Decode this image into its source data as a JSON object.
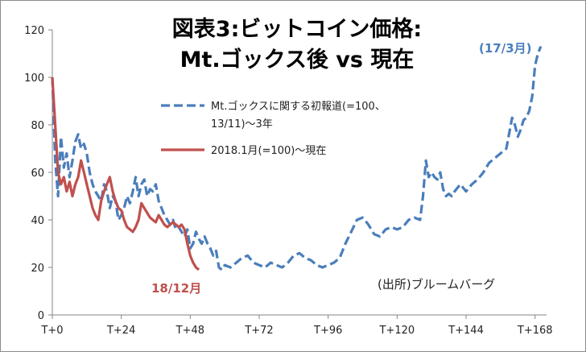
{
  "chart_data": {
    "type": "line",
    "title_line1": "図表3:ビットコイン価格:",
    "title_line2": "Mt.ゴックス後 vs 現在",
    "source": "(出所)ブルームバーグ",
    "xlim": [
      0,
      172
    ],
    "ylim": [
      0,
      120
    ],
    "y_ticks": [
      0,
      20,
      40,
      60,
      80,
      100,
      120
    ],
    "x_ticks": [
      {
        "value": 0,
        "label": "T+0"
      },
      {
        "value": 24,
        "label": "T+24"
      },
      {
        "value": 48,
        "label": "T+48"
      },
      {
        "value": 72,
        "label": "T+72"
      },
      {
        "value": 96,
        "label": "T+96"
      },
      {
        "value": 120,
        "label": "T+120"
      },
      {
        "value": 144,
        "label": "T+144"
      },
      {
        "value": 168,
        "label": "T+168"
      }
    ],
    "legend_position": "top-right",
    "series": [
      {
        "name_line1": "Mt.ゴックスに関する初報道(=100、",
        "name_line2": "13/11)〜3年",
        "color": "#4a7ebb",
        "style": "dashed",
        "end_label": "(17/3月)",
        "points": [
          [
            0,
            100
          ],
          [
            1,
            65
          ],
          [
            2,
            50
          ],
          [
            3,
            75
          ],
          [
            4,
            62
          ],
          [
            5,
            68
          ],
          [
            6,
            58
          ],
          [
            7,
            65
          ],
          [
            8,
            73
          ],
          [
            9,
            76
          ],
          [
            10,
            70
          ],
          [
            11,
            72
          ],
          [
            12,
            68
          ],
          [
            13,
            60
          ],
          [
            14,
            55
          ],
          [
            15,
            52
          ],
          [
            16,
            50
          ],
          [
            17,
            48
          ],
          [
            18,
            55
          ],
          [
            19,
            52
          ],
          [
            20,
            45
          ],
          [
            21,
            50
          ],
          [
            22,
            48
          ],
          [
            23,
            40
          ],
          [
            24,
            42
          ],
          [
            25,
            45
          ],
          [
            26,
            50
          ],
          [
            27,
            47
          ],
          [
            28,
            52
          ],
          [
            29,
            58
          ],
          [
            30,
            50
          ],
          [
            31,
            55
          ],
          [
            32,
            57
          ],
          [
            33,
            50
          ],
          [
            34,
            53
          ],
          [
            35,
            52
          ],
          [
            36,
            55
          ],
          [
            37,
            48
          ],
          [
            38,
            45
          ],
          [
            39,
            42
          ],
          [
            40,
            40
          ],
          [
            41,
            38
          ],
          [
            42,
            40
          ],
          [
            43,
            36
          ],
          [
            44,
            37
          ],
          [
            45,
            35
          ],
          [
            46,
            33
          ],
          [
            47,
            36
          ],
          [
            48,
            28
          ],
          [
            49,
            30
          ],
          [
            50,
            35
          ],
          [
            51,
            32
          ],
          [
            52,
            30
          ],
          [
            53,
            33
          ],
          [
            54,
            30
          ],
          [
            55,
            28
          ],
          [
            56,
            25
          ],
          [
            57,
            27
          ],
          [
            58,
            20
          ],
          [
            59,
            19
          ],
          [
            60,
            21
          ],
          [
            62,
            20
          ],
          [
            64,
            22
          ],
          [
            66,
            24
          ],
          [
            68,
            25
          ],
          [
            70,
            22
          ],
          [
            72,
            21
          ],
          [
            74,
            20
          ],
          [
            76,
            22
          ],
          [
            78,
            21
          ],
          [
            80,
            20
          ],
          [
            82,
            22
          ],
          [
            84,
            25
          ],
          [
            86,
            26
          ],
          [
            88,
            24
          ],
          [
            90,
            23
          ],
          [
            92,
            21
          ],
          [
            94,
            20
          ],
          [
            96,
            21
          ],
          [
            98,
            22
          ],
          [
            100,
            24
          ],
          [
            102,
            30
          ],
          [
            104,
            35
          ],
          [
            106,
            40
          ],
          [
            108,
            41
          ],
          [
            110,
            38
          ],
          [
            112,
            34
          ],
          [
            114,
            33
          ],
          [
            116,
            36
          ],
          [
            118,
            37
          ],
          [
            120,
            36
          ],
          [
            122,
            37
          ],
          [
            124,
            40
          ],
          [
            126,
            41
          ],
          [
            128,
            40
          ],
          [
            129,
            50
          ],
          [
            130,
            65
          ],
          [
            131,
            58
          ],
          [
            132,
            60
          ],
          [
            133,
            58
          ],
          [
            134,
            57
          ],
          [
            135,
            60
          ],
          [
            136,
            53
          ],
          [
            137,
            50
          ],
          [
            138,
            51
          ],
          [
            139,
            50
          ],
          [
            140,
            52
          ],
          [
            142,
            55
          ],
          [
            144,
            52
          ],
          [
            146,
            55
          ],
          [
            148,
            57
          ],
          [
            150,
            60
          ],
          [
            152,
            64
          ],
          [
            154,
            66
          ],
          [
            156,
            68
          ],
          [
            158,
            70
          ],
          [
            160,
            83
          ],
          [
            161,
            80
          ],
          [
            162,
            75
          ],
          [
            163,
            78
          ],
          [
            164,
            82
          ],
          [
            165,
            83
          ],
          [
            166,
            86
          ],
          [
            167,
            92
          ],
          [
            168,
            105
          ],
          [
            169,
            110
          ],
          [
            170,
            113
          ]
        ]
      },
      {
        "name": "2018.1月(=100)〜現在",
        "color": "#c0504d",
        "style": "solid",
        "end_label": "18/12月",
        "points": [
          [
            0,
            100
          ],
          [
            1,
            80
          ],
          [
            2,
            60
          ],
          [
            3,
            55
          ],
          [
            4,
            58
          ],
          [
            5,
            52
          ],
          [
            6,
            56
          ],
          [
            7,
            50
          ],
          [
            8,
            55
          ],
          [
            9,
            58
          ],
          [
            10,
            65
          ],
          [
            11,
            60
          ],
          [
            12,
            55
          ],
          [
            13,
            50
          ],
          [
            14,
            45
          ],
          [
            15,
            42
          ],
          [
            16,
            40
          ],
          [
            17,
            48
          ],
          [
            18,
            52
          ],
          [
            19,
            55
          ],
          [
            20,
            58
          ],
          [
            21,
            52
          ],
          [
            22,
            48
          ],
          [
            23,
            45
          ],
          [
            24,
            44
          ],
          [
            25,
            40
          ],
          [
            26,
            37
          ],
          [
            27,
            36
          ],
          [
            28,
            35
          ],
          [
            29,
            37
          ],
          [
            30,
            40
          ],
          [
            31,
            47
          ],
          [
            32,
            45
          ],
          [
            33,
            43
          ],
          [
            34,
            41
          ],
          [
            35,
            40
          ],
          [
            36,
            39
          ],
          [
            37,
            42
          ],
          [
            38,
            40
          ],
          [
            39,
            38
          ],
          [
            40,
            37
          ],
          [
            41,
            38
          ],
          [
            42,
            39
          ],
          [
            43,
            38
          ],
          [
            44,
            37
          ],
          [
            45,
            38
          ],
          [
            46,
            36
          ],
          [
            47,
            30
          ],
          [
            48,
            25
          ],
          [
            49,
            22
          ],
          [
            50,
            20
          ],
          [
            51,
            19
          ]
        ]
      }
    ]
  }
}
